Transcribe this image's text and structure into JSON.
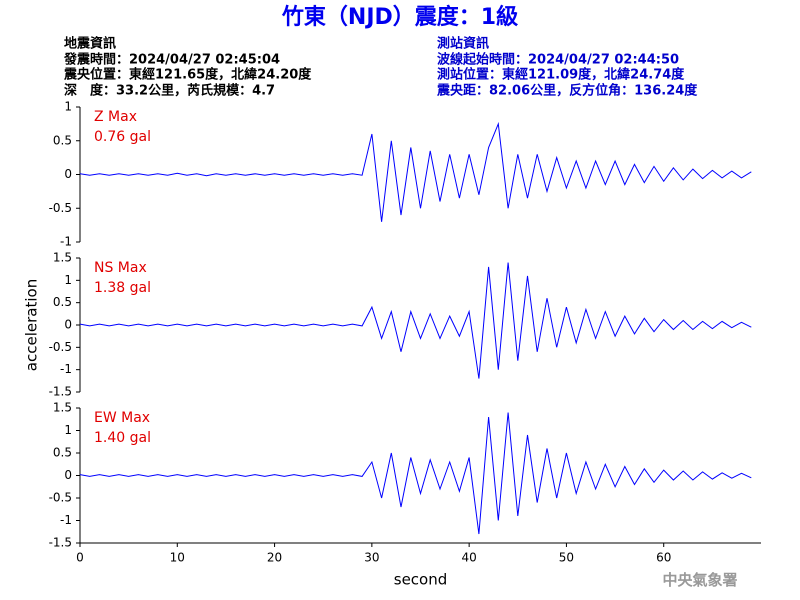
{
  "header": {
    "title": "竹東（NJD）震度：1級",
    "left": [
      "地震資訊",
      "發震時間：2024/04/27 02:45:04",
      "震央位置：東經121.65度，北緯24.20度",
      "深　度：33.2公里，芮氏規模：4.7"
    ],
    "right": [
      "測站資訊",
      "波線起始時間：2024/04/27 02:44:50",
      "測站位置：東經121.09度，北緯24.74度",
      "震央距：82.06公里，反方位角：136.24度"
    ]
  },
  "footer": "中央氣象署",
  "chart_data": [
    {
      "type": "line",
      "label": "Z Max",
      "max_label": "0.76 gal",
      "color": "#0000ff",
      "xlim": [
        0,
        70
      ],
      "ylim": [
        -1,
        1
      ],
      "yticks": [
        1,
        0.5,
        0,
        -0.5,
        -1
      ],
      "x": [
        0,
        1,
        2,
        3,
        4,
        5,
        6,
        7,
        8,
        9,
        10,
        11,
        12,
        13,
        14,
        15,
        16,
        17,
        18,
        19,
        20,
        21,
        22,
        23,
        24,
        25,
        26,
        27,
        28,
        29,
        30,
        31,
        32,
        33,
        34,
        35,
        36,
        37,
        38,
        39,
        40,
        41,
        42,
        43,
        44,
        45,
        46,
        47,
        48,
        49,
        50,
        51,
        52,
        53,
        54,
        55,
        56,
        57,
        58,
        59,
        60,
        61,
        62,
        63,
        64,
        65,
        66,
        67,
        68,
        69
      ],
      "values": [
        0.01,
        -0.01,
        0.01,
        -0.01,
        0.01,
        -0.01,
        0.01,
        -0.01,
        0.01,
        -0.01,
        0.02,
        -0.01,
        0.01,
        -0.02,
        0.01,
        -0.01,
        0.01,
        -0.01,
        0.01,
        -0.01,
        0.01,
        -0.01,
        0.01,
        -0.01,
        0.01,
        -0.01,
        0.01,
        -0.01,
        0.01,
        -0.01,
        0.6,
        -0.7,
        0.5,
        -0.6,
        0.4,
        -0.5,
        0.35,
        -0.4,
        0.3,
        -0.35,
        0.3,
        -0.3,
        0.4,
        0.75,
        -0.5,
        0.3,
        -0.35,
        0.3,
        -0.25,
        0.25,
        -0.2,
        0.2,
        -0.2,
        0.2,
        -0.15,
        0.2,
        -0.15,
        0.15,
        -0.12,
        0.12,
        -0.1,
        0.1,
        -0.08,
        0.08,
        -0.06,
        0.06,
        -0.05,
        0.05,
        -0.05,
        0.04
      ]
    },
    {
      "type": "line",
      "label": "NS Max",
      "max_label": "1.38 gal",
      "color": "#0000ff",
      "xlim": [
        0,
        70
      ],
      "ylim": [
        -1.5,
        1.5
      ],
      "yticks": [
        1.5,
        1,
        0.5,
        0,
        -0.5,
        -1,
        -1.5
      ],
      "ylabel": "acceleration",
      "x": [
        0,
        1,
        2,
        3,
        4,
        5,
        6,
        7,
        8,
        9,
        10,
        11,
        12,
        13,
        14,
        15,
        16,
        17,
        18,
        19,
        20,
        21,
        22,
        23,
        24,
        25,
        26,
        27,
        28,
        29,
        30,
        31,
        32,
        33,
        34,
        35,
        36,
        37,
        38,
        39,
        40,
        41,
        42,
        43,
        44,
        45,
        46,
        47,
        48,
        49,
        50,
        51,
        52,
        53,
        54,
        55,
        56,
        57,
        58,
        59,
        60,
        61,
        62,
        63,
        64,
        65,
        66,
        67,
        68,
        69
      ],
      "values": [
        0.02,
        -0.02,
        0.02,
        -0.02,
        0.02,
        -0.02,
        0.02,
        -0.02,
        0.02,
        -0.02,
        0.02,
        -0.02,
        0.02,
        -0.02,
        0.02,
        -0.02,
        0.02,
        -0.02,
        0.02,
        -0.02,
        0.02,
        -0.02,
        0.02,
        -0.02,
        0.02,
        -0.02,
        0.02,
        -0.02,
        0.02,
        -0.02,
        0.4,
        -0.3,
        0.3,
        -0.6,
        0.3,
        -0.3,
        0.25,
        -0.3,
        0.2,
        -0.25,
        0.3,
        -1.2,
        1.3,
        -1.0,
        1.4,
        -0.8,
        1.1,
        -0.6,
        0.6,
        -0.5,
        0.4,
        -0.4,
        0.35,
        -0.3,
        0.3,
        -0.25,
        0.2,
        -0.2,
        0.15,
        -0.15,
        0.12,
        -0.1,
        0.1,
        -0.1,
        0.08,
        -0.08,
        0.08,
        -0.06,
        0.06,
        -0.05
      ]
    },
    {
      "type": "line",
      "label": "EW Max",
      "max_label": "1.40 gal",
      "color": "#0000ff",
      "xlim": [
        0,
        70
      ],
      "ylim": [
        -1.5,
        1.5
      ],
      "yticks": [
        1.5,
        1,
        0.5,
        0,
        -0.5,
        -1,
        -1.5
      ],
      "xticks": [
        0,
        10,
        20,
        30,
        40,
        50,
        60
      ],
      "xlabel": "second",
      "x": [
        0,
        1,
        2,
        3,
        4,
        5,
        6,
        7,
        8,
        9,
        10,
        11,
        12,
        13,
        14,
        15,
        16,
        17,
        18,
        19,
        20,
        21,
        22,
        23,
        24,
        25,
        26,
        27,
        28,
        29,
        30,
        31,
        32,
        33,
        34,
        35,
        36,
        37,
        38,
        39,
        40,
        41,
        42,
        43,
        44,
        45,
        46,
        47,
        48,
        49,
        50,
        51,
        52,
        53,
        54,
        55,
        56,
        57,
        58,
        59,
        60,
        61,
        62,
        63,
        64,
        65,
        66,
        67,
        68,
        69
      ],
      "values": [
        0.02,
        -0.02,
        0.02,
        -0.02,
        0.02,
        -0.02,
        0.02,
        -0.02,
        0.02,
        -0.02,
        0.02,
        -0.02,
        0.02,
        -0.02,
        0.02,
        -0.02,
        0.02,
        -0.02,
        0.02,
        -0.02,
        0.02,
        -0.02,
        0.02,
        -0.02,
        0.02,
        -0.02,
        0.02,
        -0.02,
        0.02,
        -0.02,
        0.3,
        -0.5,
        0.5,
        -0.7,
        0.4,
        -0.4,
        0.35,
        -0.3,
        0.3,
        -0.35,
        0.4,
        -1.3,
        1.3,
        -1.0,
        1.4,
        -0.9,
        0.9,
        -0.6,
        0.6,
        -0.5,
        0.5,
        -0.4,
        0.3,
        -0.3,
        0.25,
        -0.25,
        0.2,
        -0.2,
        0.15,
        -0.15,
        0.12,
        -0.1,
        0.1,
        -0.1,
        0.08,
        -0.08,
        0.06,
        -0.06,
        0.05,
        -0.05
      ]
    }
  ]
}
